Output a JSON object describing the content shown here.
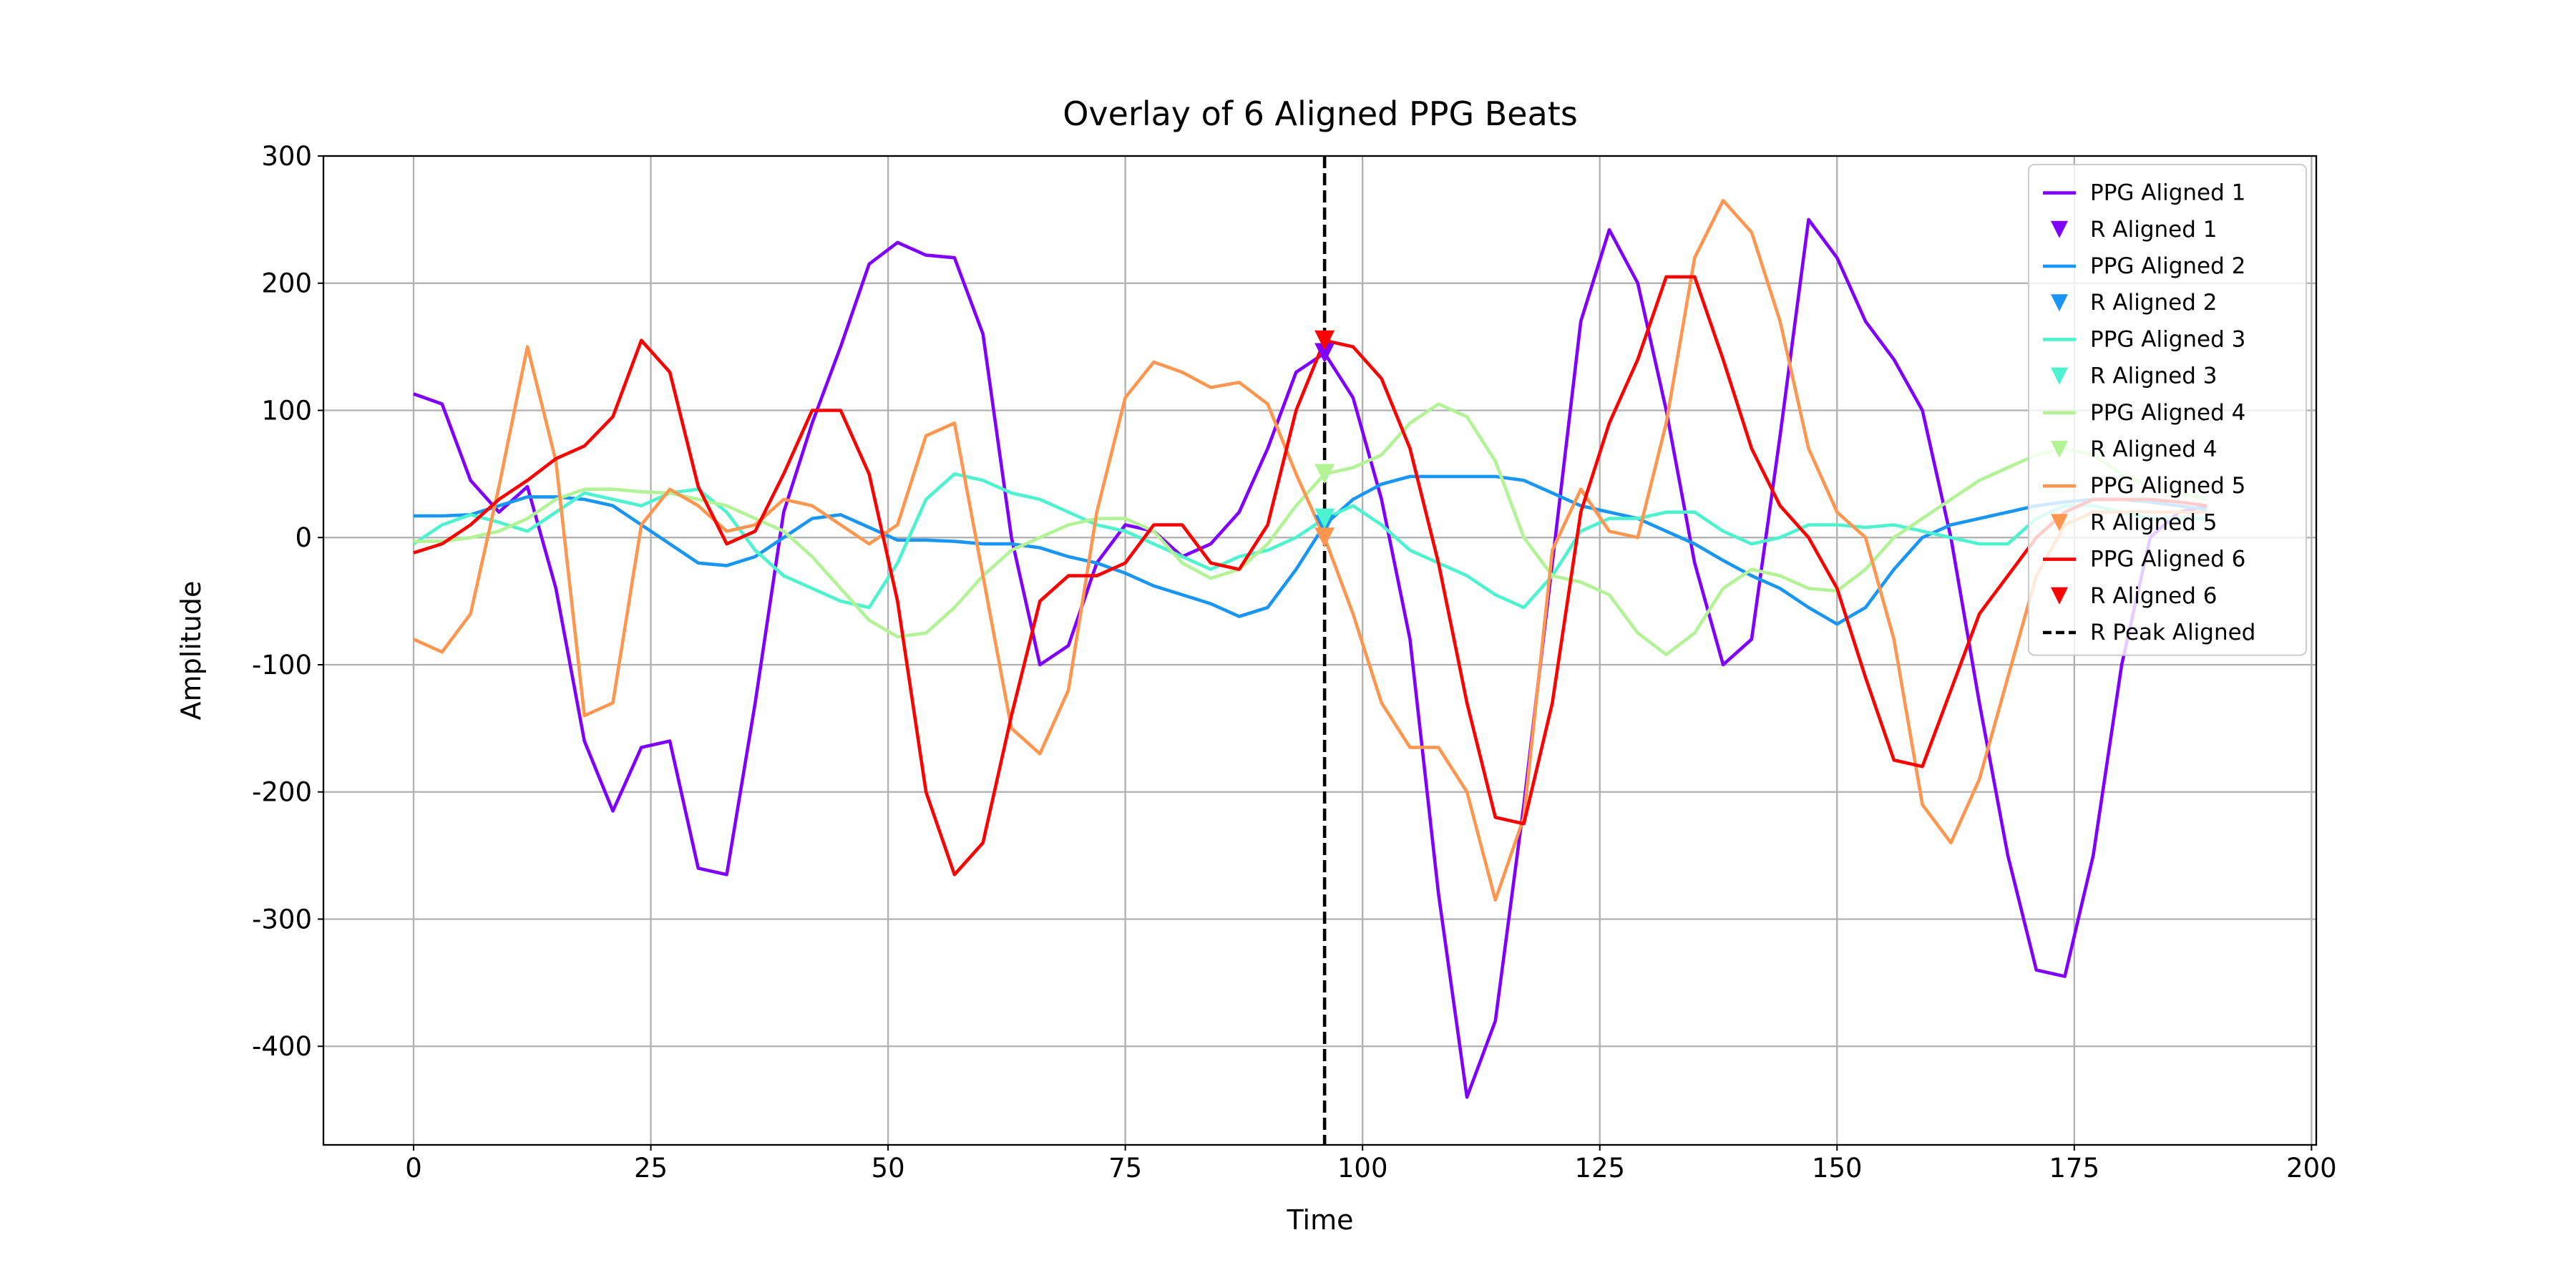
{
  "chart_data": {
    "type": "line",
    "title": "Overlay of 6 Aligned PPG Beats",
    "x_label": "Time",
    "y_label": "Amplitude",
    "x": [
      0,
      3,
      6,
      9,
      12,
      15,
      18,
      21,
      24,
      27,
      30,
      33,
      36,
      39,
      42,
      45,
      48,
      51,
      54,
      57,
      60,
      63,
      66,
      69,
      72,
      75,
      78,
      81,
      84,
      87,
      90,
      93,
      96,
      99,
      102,
      105,
      108,
      111,
      114,
      117,
      120,
      123,
      126,
      129,
      132,
      135,
      138,
      141,
      144,
      147,
      150,
      153,
      156,
      159,
      162,
      165,
      168,
      171,
      174,
      177,
      180,
      183,
      186,
      189
    ],
    "series": [
      {
        "name": "PPG Aligned 1",
        "color": "#8000ff",
        "values": [
          113,
          105,
          45,
          20,
          40,
          -40,
          -160,
          -215,
          -165,
          -160,
          -260,
          -265,
          -130,
          20,
          90,
          150,
          215,
          232,
          222,
          220,
          160,
          0,
          -100,
          -85,
          -20,
          10,
          5,
          -15,
          -5,
          20,
          70,
          130,
          145,
          110,
          30,
          -80,
          -280,
          -440,
          -380,
          -210,
          -20,
          170,
          242,
          200,
          100,
          -20,
          -100,
          -80,
          80,
          250,
          220,
          170,
          140,
          100,
          0,
          -130,
          -250,
          -340,
          -345,
          -250,
          -100,
          0,
          20,
          25
        ]
      },
      {
        "name": "PPG Aligned 2",
        "color": "#1996f3",
        "values": [
          17,
          17,
          18,
          25,
          32,
          32,
          30,
          25,
          10,
          -5,
          -20,
          -22,
          -15,
          0,
          15,
          18,
          8,
          -2,
          -2,
          -3,
          -5,
          -5,
          -8,
          -15,
          -20,
          -28,
          -38,
          -45,
          -52,
          -62,
          -55,
          -25,
          10,
          30,
          42,
          48,
          48,
          48,
          48,
          45,
          35,
          25,
          20,
          15,
          5,
          -5,
          -18,
          -30,
          -40,
          -55,
          -68,
          -55,
          -25,
          0,
          10,
          15,
          20,
          25,
          28,
          30,
          30,
          28,
          25,
          22
        ]
      },
      {
        "name": "PPG Aligned 3",
        "color": "#4df3ce",
        "values": [
          -5,
          10,
          18,
          12,
          5,
          20,
          35,
          30,
          25,
          35,
          38,
          20,
          -10,
          -30,
          -40,
          -50,
          -55,
          -20,
          30,
          50,
          45,
          35,
          30,
          20,
          10,
          5,
          -5,
          -15,
          -25,
          -15,
          -10,
          0,
          15,
          25,
          10,
          -10,
          -20,
          -30,
          -45,
          -55,
          -30,
          5,
          15,
          15,
          20,
          20,
          5,
          -5,
          0,
          10,
          10,
          8,
          10,
          5,
          0,
          -5,
          -5,
          15,
          25,
          25,
          20,
          15,
          15,
          15
        ]
      },
      {
        "name": "PPG Aligned 4",
        "color": "#b2f396",
        "values": [
          -3,
          -3,
          0,
          5,
          15,
          30,
          38,
          38,
          36,
          35,
          30,
          25,
          15,
          5,
          -15,
          -40,
          -65,
          -78,
          -75,
          -55,
          -30,
          -10,
          0,
          10,
          15,
          15,
          5,
          -20,
          -32,
          -25,
          -5,
          25,
          50,
          55,
          65,
          90,
          105,
          95,
          60,
          0,
          -30,
          -35,
          -45,
          -75,
          -92,
          -75,
          -40,
          -25,
          -30,
          -40,
          -42,
          -25,
          0,
          15,
          30,
          45,
          55,
          65,
          70,
          65,
          50,
          40,
          35,
          30
        ]
      },
      {
        "name": "PPG Aligned 5",
        "color": "#ff964f",
        "values": [
          -80,
          -90,
          -60,
          40,
          150,
          60,
          -140,
          -130,
          10,
          38,
          25,
          5,
          10,
          30,
          25,
          10,
          -5,
          10,
          80,
          90,
          -30,
          -150,
          -170,
          -120,
          20,
          110,
          138,
          130,
          118,
          122,
          105,
          50,
          0,
          -60,
          -130,
          -165,
          -165,
          -200,
          -285,
          -220,
          -10,
          38,
          5,
          0,
          90,
          220,
          265,
          240,
          170,
          70,
          20,
          0,
          -80,
          -210,
          -240,
          -190,
          -110,
          -30,
          10,
          20,
          20,
          20,
          20,
          20
        ]
      },
      {
        "name": "PPG Aligned 6",
        "color": "#ff0000",
        "values": [
          -12,
          -5,
          10,
          30,
          45,
          62,
          72,
          95,
          155,
          130,
          40,
          -5,
          5,
          50,
          100,
          100,
          50,
          -50,
          -200,
          -265,
          -240,
          -140,
          -50,
          -30,
          -30,
          -20,
          10,
          10,
          -20,
          -25,
          10,
          100,
          155,
          150,
          125,
          70,
          -20,
          -130,
          -220,
          -225,
          -130,
          20,
          90,
          140,
          205,
          205,
          140,
          70,
          25,
          0,
          -40,
          -110,
          -175,
          -180,
          -120,
          -60,
          -30,
          0,
          20,
          30,
          30,
          30,
          28,
          25
        ]
      }
    ],
    "markers": [
      {
        "name": "R Aligned 1",
        "color": "#8000ff",
        "x": 96,
        "y": 145
      },
      {
        "name": "R Aligned 2",
        "color": "#1996f3",
        "x": 96,
        "y": 10
      },
      {
        "name": "R Aligned 3",
        "color": "#4df3ce",
        "x": 96,
        "y": 15
      },
      {
        "name": "R Aligned 4",
        "color": "#b2f396",
        "x": 96,
        "y": 50
      },
      {
        "name": "R Aligned 5",
        "color": "#ff964f",
        "x": 96,
        "y": 0
      },
      {
        "name": "R Aligned 6",
        "color": "#ff0000",
        "x": 96,
        "y": 155
      }
    ],
    "vline": {
      "name": "R Peak Aligned",
      "x": 96,
      "color": "#000000"
    },
    "xlim": [
      -9.5,
      200.5
    ],
    "xticks": [
      0,
      25,
      50,
      75,
      100,
      125,
      150,
      175,
      200
    ],
    "ylim": [
      -477.5,
      300
    ],
    "yticks": [
      -400,
      -300,
      -200,
      -100,
      0,
      100,
      200,
      300
    ],
    "grid": true,
    "legend": "upper right"
  }
}
